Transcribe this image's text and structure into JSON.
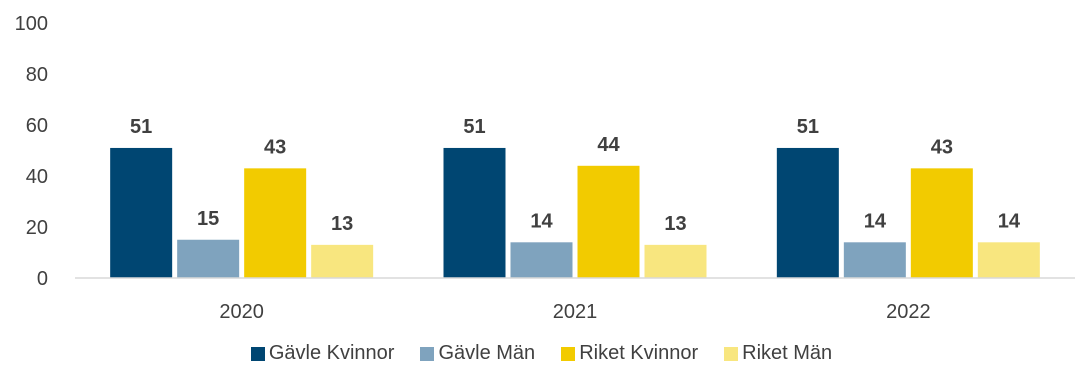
{
  "chart_data": {
    "type": "bar",
    "categories": [
      "2020",
      "2021",
      "2022"
    ],
    "series": [
      {
        "name": "Gävle Kvinnor",
        "values": [
          51,
          51,
          51
        ],
        "color": "#004672"
      },
      {
        "name": "Gävle Män",
        "values": [
          15,
          14,
          14
        ],
        "color": "#7FA3BE"
      },
      {
        "name": "Riket Kvinnor",
        "values": [
          43,
          44,
          43
        ],
        "color": "#F2CB00"
      },
      {
        "name": "Riket Män",
        "values": [
          13,
          13,
          14
        ],
        "color": "#F8E67F"
      }
    ],
    "yticks": [
      "0",
      "20",
      "40",
      "60",
      "80",
      "100"
    ],
    "ylim": [
      0,
      100
    ],
    "grid": false,
    "legend_position": "bottom"
  }
}
